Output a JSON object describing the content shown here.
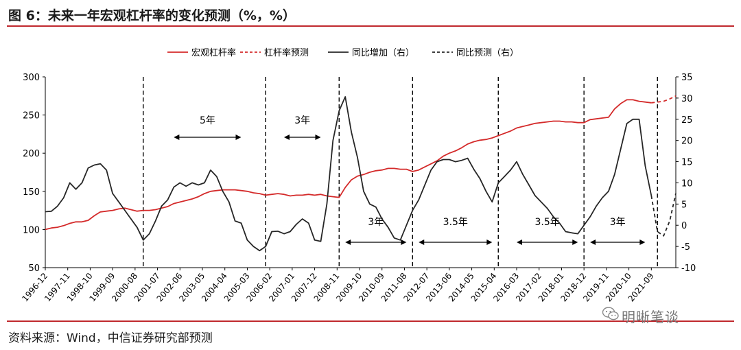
{
  "figure": {
    "title": "图 6：未来一年宏观杠杆率的变化预测（%，%）",
    "source": "资料来源：Wind，中信证券研究部预测",
    "watermark": "明晰笔谈"
  },
  "colors": {
    "accent": "#c0282d",
    "series_red": "#d42a2a",
    "series_black": "#262626"
  },
  "chart_data": {
    "type": "line",
    "title": "",
    "x_ticks": [
      "1996-12",
      "1997-11",
      "1998-10",
      "1999-09",
      "2000-08",
      "2001-07",
      "2002-06",
      "2003-05",
      "2004-04",
      "2005-03",
      "2006-02",
      "2007-01",
      "2007-12",
      "2008-11",
      "2009-10",
      "2010-09",
      "2011-08",
      "2012-07",
      "2013-06",
      "2014-05",
      "2015-04",
      "2016-03",
      "2017-02",
      "2018-01",
      "2018-12",
      "2019-11",
      "2020-10",
      "2021-09"
    ],
    "x_domain": [
      "1996-12",
      "2022-09"
    ],
    "y_left": {
      "min": 50,
      "max": 300,
      "ticks": [
        50,
        100,
        150,
        200,
        250,
        300
      ]
    },
    "y_right": {
      "min": -10,
      "max": 35,
      "ticks": [
        -10,
        -5,
        0,
        5,
        10,
        15,
        20,
        25,
        30,
        35
      ]
    },
    "legend": [
      "宏观杠杆率",
      "杠杆率预测",
      "同比增加（右）",
      "同比预测（右）"
    ],
    "series": [
      {
        "name": "宏观杠杆率",
        "axis": "left",
        "style": "solid",
        "color": "#d42a2a",
        "points": [
          [
            "1996-12",
            100
          ],
          [
            "1997-03",
            102
          ],
          [
            "1997-06",
            103
          ],
          [
            "1997-09",
            105
          ],
          [
            "1997-12",
            108
          ],
          [
            "1998-03",
            110
          ],
          [
            "1998-06",
            110
          ],
          [
            "1998-09",
            112
          ],
          [
            "1998-12",
            118
          ],
          [
            "1999-03",
            123
          ],
          [
            "1999-06",
            124
          ],
          [
            "1999-09",
            125
          ],
          [
            "1999-12",
            127
          ],
          [
            "2000-03",
            128
          ],
          [
            "2000-06",
            126
          ],
          [
            "2000-09",
            124
          ],
          [
            "2000-12",
            125
          ],
          [
            "2001-03",
            125
          ],
          [
            "2001-06",
            126
          ],
          [
            "2001-09",
            128
          ],
          [
            "2001-12",
            130
          ],
          [
            "2002-03",
            134
          ],
          [
            "2002-06",
            136
          ],
          [
            "2002-09",
            138
          ],
          [
            "2002-12",
            140
          ],
          [
            "2003-03",
            143
          ],
          [
            "2003-06",
            147
          ],
          [
            "2003-09",
            150
          ],
          [
            "2003-12",
            151
          ],
          [
            "2004-03",
            152
          ],
          [
            "2004-06",
            152
          ],
          [
            "2004-09",
            152
          ],
          [
            "2004-12",
            151
          ],
          [
            "2005-03",
            150
          ],
          [
            "2005-06",
            148
          ],
          [
            "2005-09",
            147
          ],
          [
            "2005-12",
            145
          ],
          [
            "2006-03",
            146
          ],
          [
            "2006-06",
            147
          ],
          [
            "2006-09",
            146
          ],
          [
            "2006-12",
            144
          ],
          [
            "2007-03",
            145
          ],
          [
            "2007-06",
            145
          ],
          [
            "2007-09",
            146
          ],
          [
            "2007-12",
            145
          ],
          [
            "2008-03",
            146
          ],
          [
            "2008-06",
            144
          ],
          [
            "2008-09",
            143
          ],
          [
            "2008-12",
            142
          ],
          [
            "2009-03",
            155
          ],
          [
            "2009-06",
            165
          ],
          [
            "2009-09",
            170
          ],
          [
            "2009-12",
            172
          ],
          [
            "2010-03",
            175
          ],
          [
            "2010-06",
            177
          ],
          [
            "2010-09",
            178
          ],
          [
            "2010-12",
            180
          ],
          [
            "2011-03",
            180
          ],
          [
            "2011-06",
            179
          ],
          [
            "2011-09",
            179
          ],
          [
            "2011-12",
            176
          ],
          [
            "2012-03",
            178
          ],
          [
            "2012-06",
            182
          ],
          [
            "2012-09",
            186
          ],
          [
            "2012-12",
            190
          ],
          [
            "2013-03",
            196
          ],
          [
            "2013-06",
            200
          ],
          [
            "2013-09",
            203
          ],
          [
            "2013-12",
            207
          ],
          [
            "2014-03",
            212
          ],
          [
            "2014-06",
            215
          ],
          [
            "2014-09",
            217
          ],
          [
            "2014-12",
            218
          ],
          [
            "2015-03",
            220
          ],
          [
            "2015-06",
            223
          ],
          [
            "2015-09",
            226
          ],
          [
            "2015-12",
            229
          ],
          [
            "2016-03",
            233
          ],
          [
            "2016-06",
            235
          ],
          [
            "2016-09",
            237
          ],
          [
            "2016-12",
            239
          ],
          [
            "2017-03",
            240
          ],
          [
            "2017-06",
            241
          ],
          [
            "2017-09",
            242
          ],
          [
            "2017-12",
            242
          ],
          [
            "2018-03",
            241
          ],
          [
            "2018-06",
            241
          ],
          [
            "2018-09",
            240
          ],
          [
            "2018-12",
            240
          ],
          [
            "2019-03",
            244
          ],
          [
            "2019-06",
            245
          ],
          [
            "2019-09",
            246
          ],
          [
            "2019-12",
            247
          ],
          [
            "2020-03",
            258
          ],
          [
            "2020-06",
            265
          ],
          [
            "2020-09",
            270
          ],
          [
            "2020-12",
            270
          ],
          [
            "2021-03",
            268
          ],
          [
            "2021-06",
            267
          ],
          [
            "2021-09",
            266
          ]
        ]
      },
      {
        "name": "杠杆率预测",
        "axis": "left",
        "style": "dashed",
        "color": "#d42a2a",
        "points": [
          [
            "2021-09",
            266
          ],
          [
            "2021-12",
            267
          ],
          [
            "2022-03",
            268
          ],
          [
            "2022-06",
            271
          ],
          [
            "2022-09",
            275
          ]
        ]
      },
      {
        "name": "同比增加（右）",
        "axis": "right",
        "style": "solid",
        "color": "#262626",
        "points": [
          [
            "1996-12",
            3.2
          ],
          [
            "1997-03",
            3.3
          ],
          [
            "1997-06",
            4.5
          ],
          [
            "1997-09",
            6.5
          ],
          [
            "1997-12",
            10.0
          ],
          [
            "1998-03",
            8.5
          ],
          [
            "1998-06",
            10.0
          ],
          [
            "1998-09",
            13.5
          ],
          [
            "1998-12",
            14.2
          ],
          [
            "1999-03",
            14.5
          ],
          [
            "1999-06",
            13.0
          ],
          [
            "1999-09",
            7.5
          ],
          [
            "1999-12",
            5.5
          ],
          [
            "2000-03",
            3.5
          ],
          [
            "2000-06",
            1.5
          ],
          [
            "2000-09",
            -0.5
          ],
          [
            "2000-12",
            -3.5
          ],
          [
            "2001-03",
            -2.0
          ],
          [
            "2001-06",
            1.0
          ],
          [
            "2001-09",
            4.5
          ],
          [
            "2001-12",
            6.0
          ],
          [
            "2002-03",
            9.0
          ],
          [
            "2002-06",
            10.0
          ],
          [
            "2002-09",
            9.2
          ],
          [
            "2002-12",
            10.0
          ],
          [
            "2003-03",
            9.5
          ],
          [
            "2003-06",
            10.0
          ],
          [
            "2003-09",
            13.0
          ],
          [
            "2003-12",
            11.5
          ],
          [
            "2004-03",
            8.0
          ],
          [
            "2004-06",
            5.5
          ],
          [
            "2004-09",
            1.0
          ],
          [
            "2004-12",
            0.5
          ],
          [
            "2005-03",
            -3.5
          ],
          [
            "2005-06",
            -5.0
          ],
          [
            "2005-09",
            -6.0
          ],
          [
            "2005-12",
            -5.0
          ],
          [
            "2006-03",
            -1.5
          ],
          [
            "2006-06",
            -1.4
          ],
          [
            "2006-09",
            -2.0
          ],
          [
            "2006-12",
            -1.5
          ],
          [
            "2007-03",
            0.2
          ],
          [
            "2007-06",
            1.5
          ],
          [
            "2007-09",
            0.5
          ],
          [
            "2007-12",
            -3.5
          ],
          [
            "2008-03",
            -3.8
          ],
          [
            "2008-06",
            5.0
          ],
          [
            "2008-09",
            20.0
          ],
          [
            "2008-12",
            27.0
          ],
          [
            "2009-03",
            30.3
          ],
          [
            "2009-06",
            22.0
          ],
          [
            "2009-09",
            16.0
          ],
          [
            "2009-12",
            8.0
          ],
          [
            "2010-03",
            5.0
          ],
          [
            "2010-06",
            4.3
          ],
          [
            "2010-09",
            1.5
          ],
          [
            "2010-12",
            -0.5
          ],
          [
            "2011-03",
            -3.0
          ],
          [
            "2011-06",
            -3.5
          ],
          [
            "2011-09",
            0.0
          ],
          [
            "2011-12",
            3.5
          ],
          [
            "2012-03",
            6.0
          ],
          [
            "2012-06",
            9.5
          ],
          [
            "2012-09",
            13.0
          ],
          [
            "2012-12",
            15.0
          ],
          [
            "2013-03",
            15.5
          ],
          [
            "2013-06",
            15.5
          ],
          [
            "2013-09",
            15.0
          ],
          [
            "2013-12",
            15.3
          ],
          [
            "2014-03",
            15.8
          ],
          [
            "2014-06",
            13.2
          ],
          [
            "2014-09",
            11.0
          ],
          [
            "2014-12",
            8.0
          ],
          [
            "2015-03",
            5.5
          ],
          [
            "2015-06",
            10.0
          ],
          [
            "2015-09",
            11.5
          ],
          [
            "2015-12",
            13.0
          ],
          [
            "2016-03",
            15.0
          ],
          [
            "2016-06",
            12.0
          ],
          [
            "2016-09",
            9.5
          ],
          [
            "2016-12",
            7.0
          ],
          [
            "2017-03",
            5.5
          ],
          [
            "2017-06",
            4.0
          ],
          [
            "2017-09",
            2.0
          ],
          [
            "2017-12",
            0.5
          ],
          [
            "2018-03",
            -1.5
          ],
          [
            "2018-06",
            -1.8
          ],
          [
            "2018-09",
            -2.0
          ],
          [
            "2018-12",
            0.0
          ],
          [
            "2019-03",
            2.0
          ],
          [
            "2019-06",
            4.5
          ],
          [
            "2019-09",
            6.5
          ],
          [
            "2019-12",
            8.0
          ],
          [
            "2020-03",
            12.0
          ],
          [
            "2020-06",
            18.0
          ],
          [
            "2020-09",
            24.0
          ],
          [
            "2020-12",
            25.0
          ],
          [
            "2021-03",
            25.0
          ],
          [
            "2021-06",
            14.0
          ],
          [
            "2021-09",
            7.0
          ]
        ]
      },
      {
        "name": "同比预测（右）",
        "axis": "right",
        "style": "dashed",
        "color": "#262626",
        "points": [
          [
            "2021-09",
            7.0
          ],
          [
            "2021-12",
            -1.5
          ],
          [
            "2022-03",
            -2.5
          ],
          [
            "2022-06",
            1.0
          ],
          [
            "2022-09",
            7.5
          ]
        ]
      }
    ],
    "cycle_lines": [
      "2000-12",
      "2005-12",
      "2008-12",
      "2011-12",
      "2015-06",
      "2018-12",
      "2021-12"
    ],
    "annotations": [
      {
        "text": "5年",
        "from": "2002-03",
        "to": "2004-12",
        "level": "upper"
      },
      {
        "text": "3年",
        "from": "2006-09",
        "to": "2008-03",
        "level": "upper"
      },
      {
        "text": "3年",
        "from": "2009-03",
        "to": "2011-09",
        "level": "lower"
      },
      {
        "text": "3.5年",
        "from": "2012-03",
        "to": "2015-03",
        "level": "lower"
      },
      {
        "text": "3.5年",
        "from": "2016-03",
        "to": "2018-09",
        "level": "lower"
      },
      {
        "text": "3年",
        "from": "2019-03",
        "to": "2021-06",
        "level": "lower"
      }
    ]
  }
}
